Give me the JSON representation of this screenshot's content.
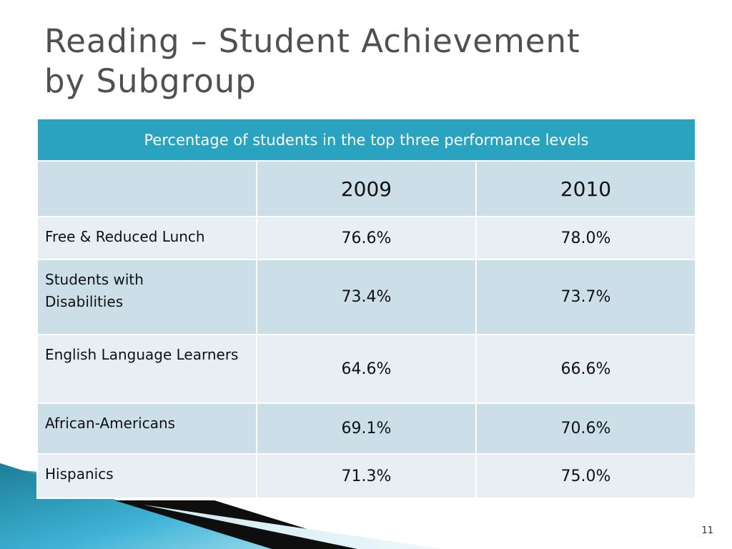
{
  "slide": {
    "title_line1": "Reading – Student Achievement",
    "title_line2": "by Subgroup",
    "page_number": "11"
  },
  "table": {
    "banner": "Percentage of students in the top three performance levels",
    "column_headers": [
      "",
      "2009",
      "2010"
    ],
    "rows": [
      {
        "label": "Free & Reduced Lunch",
        "v2009": "76.6%",
        "v2010": "78.0%"
      },
      {
        "label": "Students with Disabilities",
        "v2009": "73.4%",
        "v2010": "73.7%"
      },
      {
        "label": "English Language Learners",
        "v2009": "64.6%",
        "v2010": "66.6%"
      },
      {
        "label": "African-Americans",
        "v2009": "69.1%",
        "v2010": "70.6%"
      },
      {
        "label": "Hispanics",
        "v2009": "71.3%",
        "v2010": "75.0%"
      }
    ]
  },
  "colors": {
    "banner": "#2aa3c1",
    "row_dark": "#ccdfe8",
    "row_light": "#e8eff4",
    "title": "#505050"
  }
}
